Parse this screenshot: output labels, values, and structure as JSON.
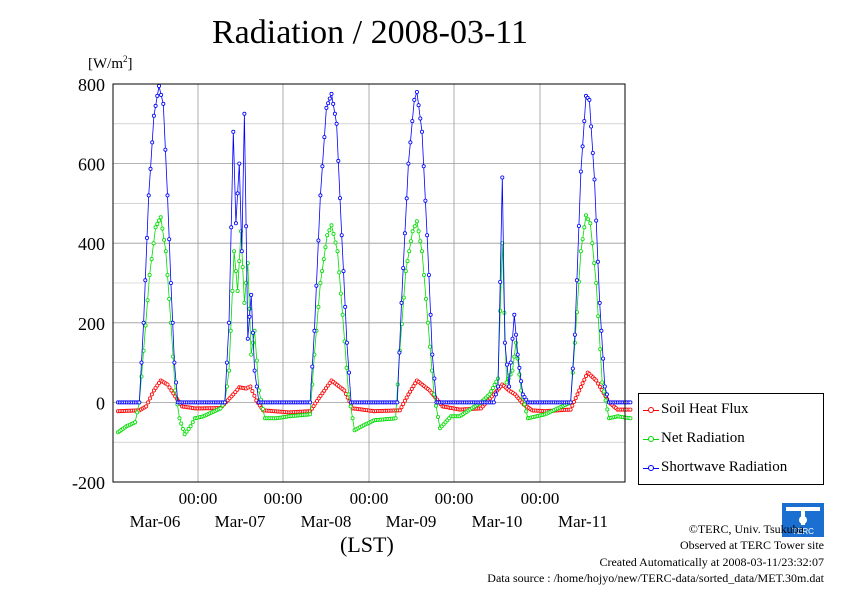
{
  "title": "Radiation / 2008-03-11",
  "unit_label": "[W/m",
  "unit_sup": "2",
  "unit_close": "]",
  "xaxis_label": "(LST)",
  "credits": {
    "line1": "©TERC, Univ. Tsukuba",
    "line2": "Observed at TERC Tower site",
    "line3": "Created Automatically at 2008-03-11/23:32:07",
    "line4": "Data source : /home/hojyo/new/TERC-data/sorted_data/MET.30m.dat"
  },
  "logo_text": "TERC",
  "colors": {
    "soil": "#ff0000",
    "net": "#00dd00",
    "sw": "#0000ff"
  },
  "chart_data": {
    "type": "line",
    "title": "Radiation / 2008-03-11",
    "xlabel": "(LST)",
    "ylabel": "[W/m2]",
    "ylim": [
      -200,
      800
    ],
    "yticks": [
      -200,
      0,
      200,
      400,
      600,
      800
    ],
    "grid": true,
    "legend": "bottom-right",
    "x_range_days": [
      0,
      6
    ],
    "xticks": [
      {
        "time": "00:00",
        "date": "Mar-06"
      },
      {
        "time": "00:00",
        "date": "Mar-07"
      },
      {
        "time": "00:00",
        "date": "Mar-08"
      },
      {
        "time": "00:00",
        "date": "Mar-09"
      },
      {
        "time": "00:00",
        "date": "Mar-10"
      },
      {
        "time": "00:00",
        "date": "Mar-11"
      }
    ],
    "tick_labels": [
      "-200",
      "0",
      "200",
      "400",
      "600",
      "800"
    ],
    "series": [
      {
        "name": "Soil Heat Flux",
        "color": "#ff0000",
        "points": [
          [
            0,
            -22
          ],
          [
            0.25,
            -20
          ],
          [
            0.33,
            -10
          ],
          [
            0.42,
            30
          ],
          [
            0.5,
            55
          ],
          [
            0.58,
            45
          ],
          [
            0.67,
            15
          ],
          [
            0.75,
            -10
          ],
          [
            0.9,
            -15
          ],
          [
            1.0,
            -15
          ],
          [
            1.2,
            -14
          ],
          [
            1.35,
            20
          ],
          [
            1.42,
            38
          ],
          [
            1.5,
            35
          ],
          [
            1.55,
            40
          ],
          [
            1.62,
            5
          ],
          [
            1.7,
            -20
          ],
          [
            2.0,
            -25
          ],
          [
            2.25,
            -22
          ],
          [
            2.35,
            10
          ],
          [
            2.5,
            55
          ],
          [
            2.65,
            30
          ],
          [
            2.75,
            -15
          ],
          [
            3.0,
            -22
          ],
          [
            3.3,
            -20
          ],
          [
            3.4,
            20
          ],
          [
            3.5,
            55
          ],
          [
            3.65,
            30
          ],
          [
            3.8,
            -10
          ],
          [
            4.0,
            -18
          ],
          [
            4.25,
            -15
          ],
          [
            4.4,
            20
          ],
          [
            4.5,
            45
          ],
          [
            4.58,
            30
          ],
          [
            4.65,
            20
          ],
          [
            4.75,
            -5
          ],
          [
            4.85,
            -20
          ],
          [
            5.0,
            -22
          ],
          [
            5.3,
            -18
          ],
          [
            5.4,
            30
          ],
          [
            5.5,
            75
          ],
          [
            5.6,
            55
          ],
          [
            5.75,
            0
          ],
          [
            5.85,
            -18
          ],
          [
            6.0,
            -18
          ]
        ]
      },
      {
        "name": "Net Radiation",
        "color": "#00dd00",
        "points": [
          [
            0,
            -75
          ],
          [
            0.1,
            -60
          ],
          [
            0.2,
            -50
          ],
          [
            0.25,
            0
          ],
          [
            0.3,
            130
          ],
          [
            0.37,
            320
          ],
          [
            0.44,
            440
          ],
          [
            0.5,
            465
          ],
          [
            0.56,
            380
          ],
          [
            0.62,
            200
          ],
          [
            0.67,
            30
          ],
          [
            0.72,
            -40
          ],
          [
            0.78,
            -80
          ],
          [
            0.85,
            -60
          ],
          [
            0.9,
            -40
          ],
          [
            1.0,
            -35
          ],
          [
            1.2,
            -15
          ],
          [
            1.25,
            0
          ],
          [
            1.3,
            80
          ],
          [
            1.36,
            380
          ],
          [
            1.4,
            280
          ],
          [
            1.44,
            430
          ],
          [
            1.48,
            250
          ],
          [
            1.52,
            350
          ],
          [
            1.56,
            120
          ],
          [
            1.6,
            180
          ],
          [
            1.65,
            30
          ],
          [
            1.72,
            -40
          ],
          [
            1.85,
            -40
          ],
          [
            2.0,
            -35
          ],
          [
            2.25,
            -30
          ],
          [
            2.3,
            120
          ],
          [
            2.37,
            300
          ],
          [
            2.45,
            420
          ],
          [
            2.5,
            445
          ],
          [
            2.57,
            380
          ],
          [
            2.63,
            220
          ],
          [
            2.7,
            20
          ],
          [
            2.77,
            -70
          ],
          [
            2.9,
            -55
          ],
          [
            3.0,
            -45
          ],
          [
            3.25,
            -40
          ],
          [
            3.3,
            130
          ],
          [
            3.37,
            330
          ],
          [
            3.45,
            430
          ],
          [
            3.5,
            455
          ],
          [
            3.56,
            380
          ],
          [
            3.63,
            200
          ],
          [
            3.7,
            20
          ],
          [
            3.77,
            -65
          ],
          [
            3.9,
            -35
          ],
          [
            4.0,
            -35
          ],
          [
            4.25,
            0
          ],
          [
            4.35,
            20
          ],
          [
            4.45,
            60
          ],
          [
            4.5,
            400
          ],
          [
            4.55,
            50
          ],
          [
            4.62,
            80
          ],
          [
            4.66,
            150
          ],
          [
            4.72,
            30
          ],
          [
            4.8,
            -40
          ],
          [
            4.9,
            -35
          ],
          [
            5.0,
            -30
          ],
          [
            5.3,
            0
          ],
          [
            5.35,
            150
          ],
          [
            5.42,
            380
          ],
          [
            5.48,
            470
          ],
          [
            5.53,
            450
          ],
          [
            5.6,
            300
          ],
          [
            5.67,
            50
          ],
          [
            5.75,
            -40
          ],
          [
            5.85,
            -35
          ],
          [
            6.0,
            -40
          ]
        ]
      },
      {
        "name": "Shortwave Radiation",
        "color": "#0000ff",
        "points": [
          [
            0,
            0
          ],
          [
            0.25,
            0
          ],
          [
            0.3,
            200
          ],
          [
            0.36,
            520
          ],
          [
            0.42,
            720
          ],
          [
            0.48,
            795
          ],
          [
            0.53,
            750
          ],
          [
            0.58,
            520
          ],
          [
            0.62,
            300
          ],
          [
            0.66,
            100
          ],
          [
            0.7,
            0
          ],
          [
            1.0,
            0
          ],
          [
            1.25,
            0
          ],
          [
            1.3,
            200
          ],
          [
            1.35,
            680
          ],
          [
            1.38,
            450
          ],
          [
            1.42,
            600
          ],
          [
            1.45,
            380
          ],
          [
            1.48,
            725
          ],
          [
            1.52,
            160
          ],
          [
            1.56,
            270
          ],
          [
            1.6,
            80
          ],
          [
            1.65,
            0
          ],
          [
            2.0,
            0
          ],
          [
            2.25,
            0
          ],
          [
            2.3,
            180
          ],
          [
            2.37,
            520
          ],
          [
            2.44,
            740
          ],
          [
            2.5,
            775
          ],
          [
            2.56,
            700
          ],
          [
            2.62,
            420
          ],
          [
            2.68,
            150
          ],
          [
            2.73,
            0
          ],
          [
            3.0,
            0
          ],
          [
            3.27,
            0
          ],
          [
            3.32,
            250
          ],
          [
            3.4,
            600
          ],
          [
            3.47,
            760
          ],
          [
            3.5,
            780
          ],
          [
            3.56,
            680
          ],
          [
            3.62,
            420
          ],
          [
            3.68,
            120
          ],
          [
            3.73,
            0
          ],
          [
            4.0,
            0
          ],
          [
            4.4,
            0
          ],
          [
            4.45,
            40
          ],
          [
            4.5,
            565
          ],
          [
            4.53,
            150
          ],
          [
            4.58,
            40
          ],
          [
            4.64,
            220
          ],
          [
            4.68,
            120
          ],
          [
            4.74,
            20
          ],
          [
            4.8,
            0
          ],
          [
            5.0,
            0
          ],
          [
            5.3,
            0
          ],
          [
            5.35,
            170
          ],
          [
            5.42,
            580
          ],
          [
            5.48,
            770
          ],
          [
            5.52,
            760
          ],
          [
            5.58,
            560
          ],
          [
            5.64,
            250
          ],
          [
            5.7,
            40
          ],
          [
            5.75,
            0
          ],
          [
            6.0,
            0
          ]
        ]
      }
    ]
  }
}
